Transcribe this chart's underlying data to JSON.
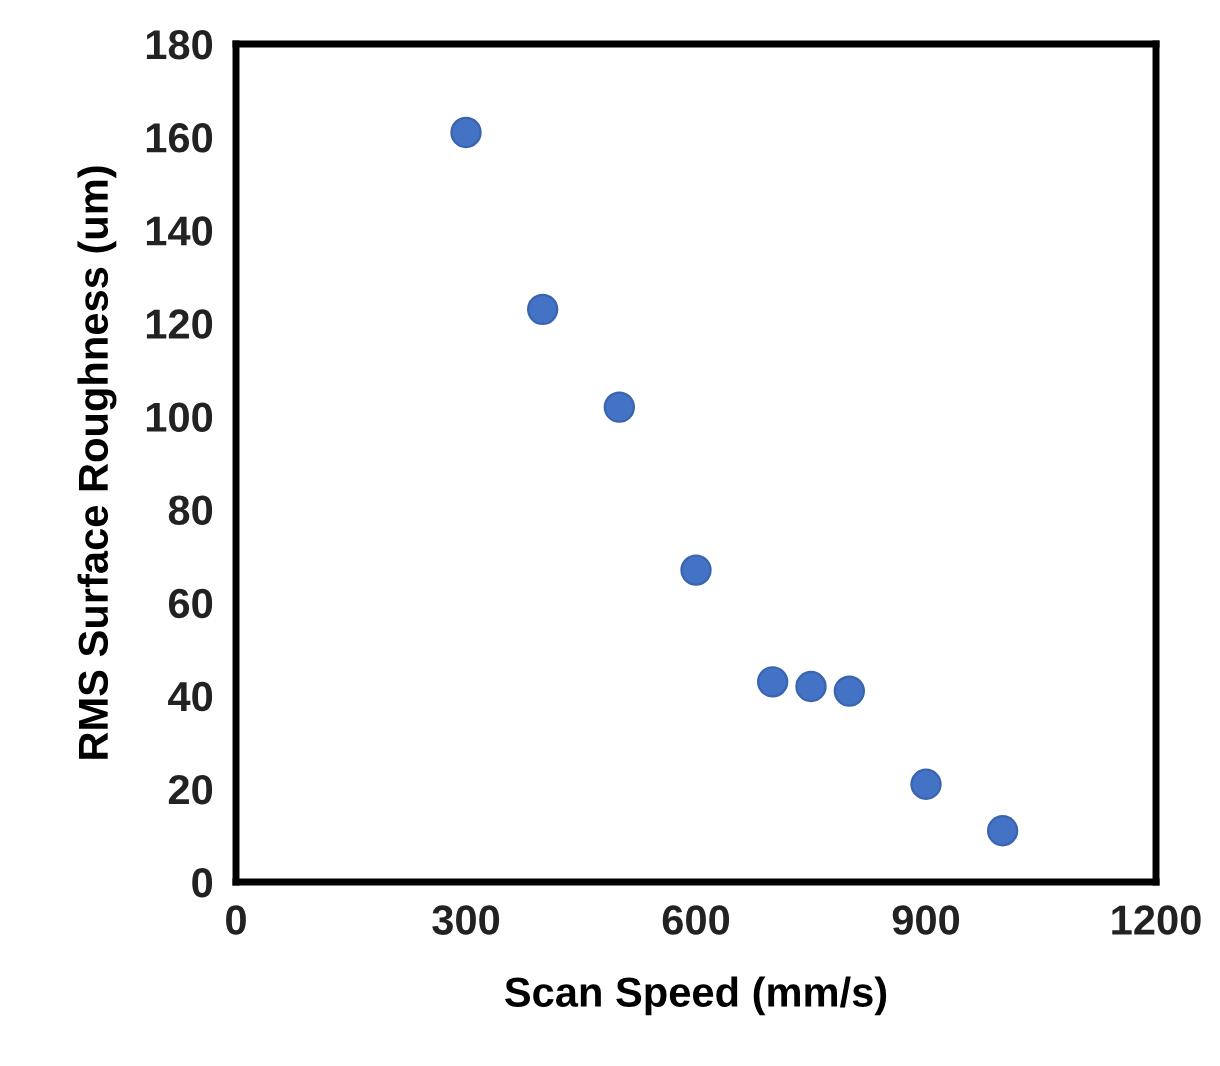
{
  "chart_data": {
    "type": "scatter",
    "xlabel": "Scan Speed (mm/s)",
    "ylabel": "RMS Surface Roughness (um)",
    "x": [
      300,
      400,
      500,
      600,
      700,
      750,
      800,
      900,
      1000
    ],
    "values": [
      161,
      123,
      102,
      67,
      43,
      42,
      41,
      21,
      11
    ],
    "color": "#4472c4",
    "marker": "circle",
    "xlim": [
      0,
      1200
    ],
    "xticks": [
      0,
      300,
      600,
      900,
      1200
    ],
    "ylim": [
      0,
      180
    ],
    "yticks": [
      0,
      20,
      40,
      60,
      80,
      100,
      120,
      140,
      160,
      180
    ],
    "grid": false,
    "legend": false
  }
}
